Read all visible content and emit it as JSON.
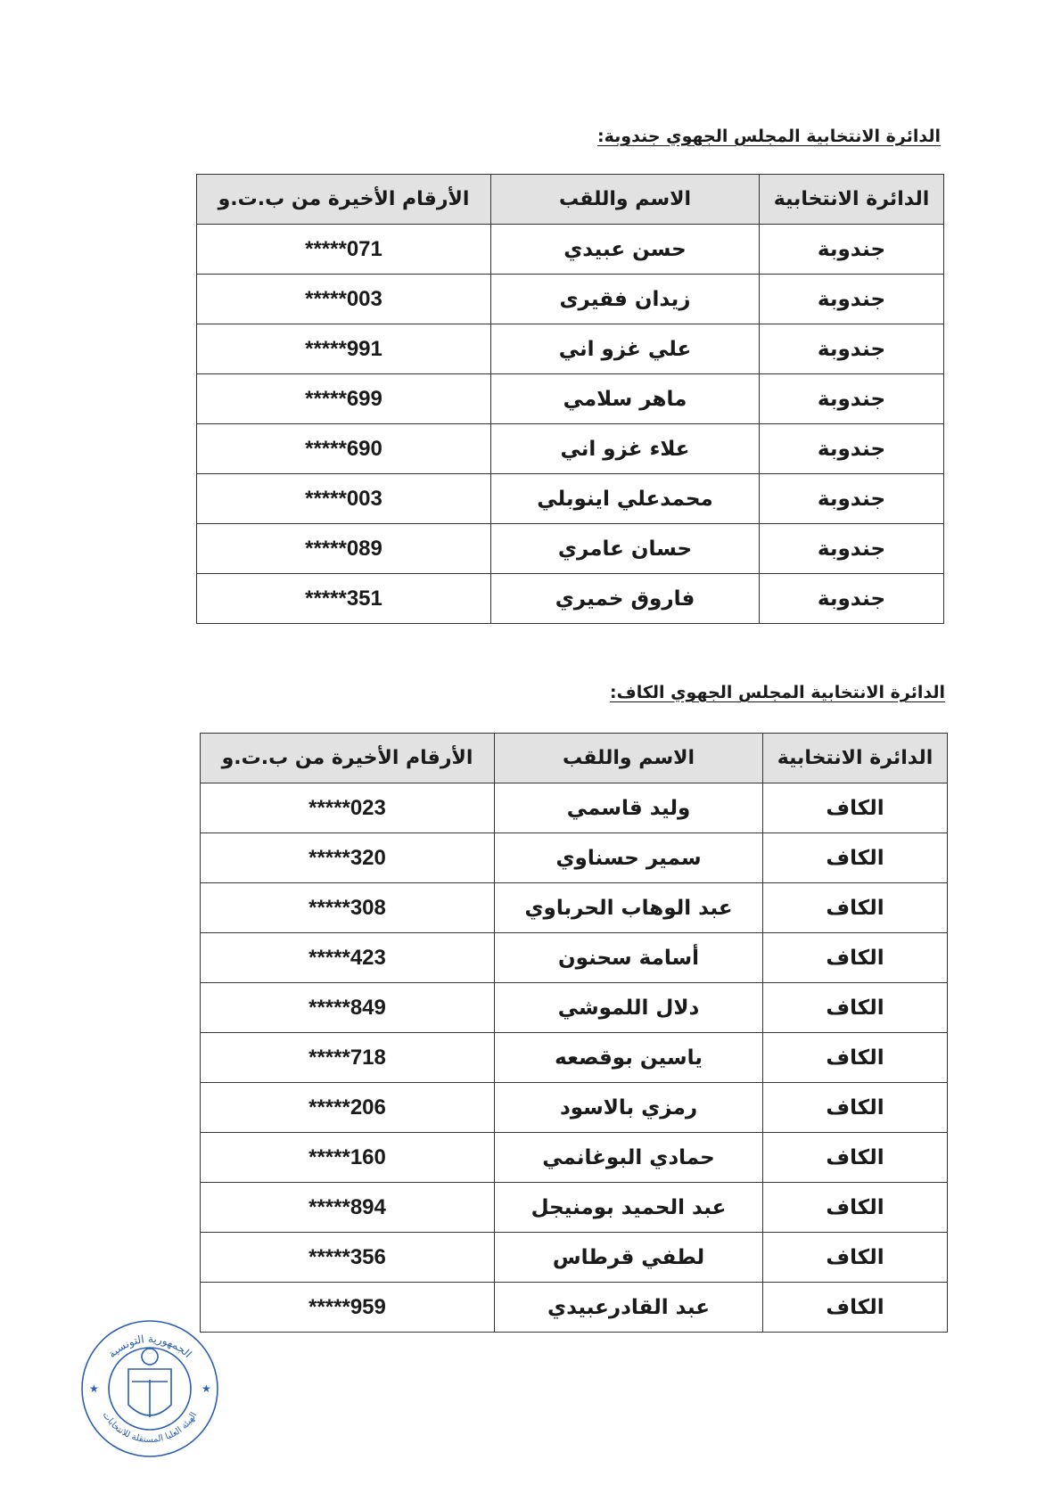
{
  "sections": [
    {
      "title": "الدائرة الانتخابية المجلس الجهوي جندوبة:",
      "headers": [
        "الدائرة الانتخابية",
        "الاسم واللقب",
        "الأرقام الأخيرة من ب.ت.و"
      ],
      "rows": [
        [
          "جندوبة",
          "حسن عبيدي",
          "*****071"
        ],
        [
          "جندوبة",
          "زيدان فقيرى",
          "*****003"
        ],
        [
          "جندوبة",
          "علي غزو اني",
          "*****991"
        ],
        [
          "جندوبة",
          "ماهر سلامي",
          "*****699"
        ],
        [
          "جندوبة",
          "علاء غزو اني",
          "*****690"
        ],
        [
          "جندوبة",
          "محمدعلي اينوبلي",
          "*****003"
        ],
        [
          "جندوبة",
          "حسان عامري",
          "*****089"
        ],
        [
          "جندوبة",
          "فاروق خميري",
          "*****351"
        ]
      ]
    },
    {
      "title": "الدائرة الانتخابية المجلس الجهوي الكاف:",
      "headers": [
        "الدائرة الانتخابية",
        "الاسم واللقب",
        "الأرقام الأخيرة من ب.ت.و"
      ],
      "rows": [
        [
          "الكاف",
          "وليد قاسمي",
          "*****023"
        ],
        [
          "الكاف",
          "سمير حسناوي",
          "*****320"
        ],
        [
          "الكاف",
          "عبد الوهاب الحرباوي",
          "*****308"
        ],
        [
          "الكاف",
          "أسامة سحنون",
          "*****423"
        ],
        [
          "الكاف",
          "دلال اللموشي",
          "*****849"
        ],
        [
          "الكاف",
          "ياسين بوقصعه",
          "*****718"
        ],
        [
          "الكاف",
          "رمزي بالاسود",
          "*****206"
        ],
        [
          "الكاف",
          "حمادي البوغانمي",
          "*****160"
        ],
        [
          "الكاف",
          "عبد الحميد بومنيجل",
          "*****894"
        ],
        [
          "الكاف",
          "لطفي قرطاس",
          "*****356"
        ],
        [
          "الكاف",
          "عبد القادرعبيدي",
          "*****959"
        ]
      ]
    }
  ],
  "stamp": {
    "top_text": "الجمهورية التونسية",
    "bottom_text": "الهيئة العليا المستقلة للانتخابات",
    "color": "#2b5fb3"
  }
}
